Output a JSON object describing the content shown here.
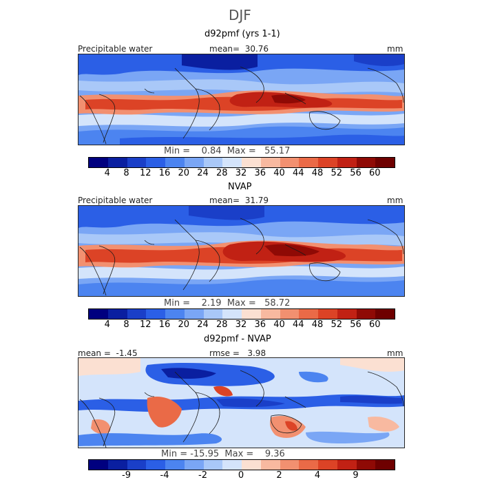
{
  "figure_title": "DJF",
  "panels": [
    {
      "title": "d92pmf (yrs 1-1)",
      "field_label": "Precipitable water",
      "stat_text": "mean=  30.76",
      "units": "mm",
      "minmax_text": "Min =    0.84  Max =   55.17",
      "colorbar_ticks": [
        "4",
        "8",
        "12",
        "16",
        "20",
        "24",
        "28",
        "32",
        "36",
        "40",
        "44",
        "48",
        "52",
        "56",
        "60"
      ]
    },
    {
      "title": "NVAP",
      "field_label": "Precipitable water",
      "stat_text": "mean=  31.79",
      "units": "mm",
      "minmax_text": "Min =    2.19  Max =   58.72",
      "colorbar_ticks": [
        "4",
        "8",
        "12",
        "16",
        "20",
        "24",
        "28",
        "32",
        "36",
        "40",
        "44",
        "48",
        "52",
        "56",
        "60"
      ]
    },
    {
      "title": "d92pmf - NVAP",
      "mean_text": "mean =  -1.45",
      "rmse_text": "rmse =   3.98",
      "units": "mm",
      "minmax_text": "Min = -15.95  Max =    9.36",
      "colorbar_ticks": [
        "-9",
        "-4",
        "-2",
        "0",
        "2",
        "4",
        "9"
      ]
    }
  ],
  "colors": {
    "colorbar": [
      "#00007f",
      "#0a1fa0",
      "#1a3fc8",
      "#2b5fe6",
      "#4c84f0",
      "#7aa6f5",
      "#a9c8f8",
      "#d4e4fb",
      "#fbe0d2",
      "#f8b9a0",
      "#f29070",
      "#ea6a47",
      "#dc4326",
      "#c12114",
      "#8f0a05",
      "#6e0000"
    ],
    "ocean_low": "#2b5fe6",
    "ocean_mid": "#a9c8f8",
    "high": "#dc4326",
    "coast": "#1a1a1a"
  }
}
